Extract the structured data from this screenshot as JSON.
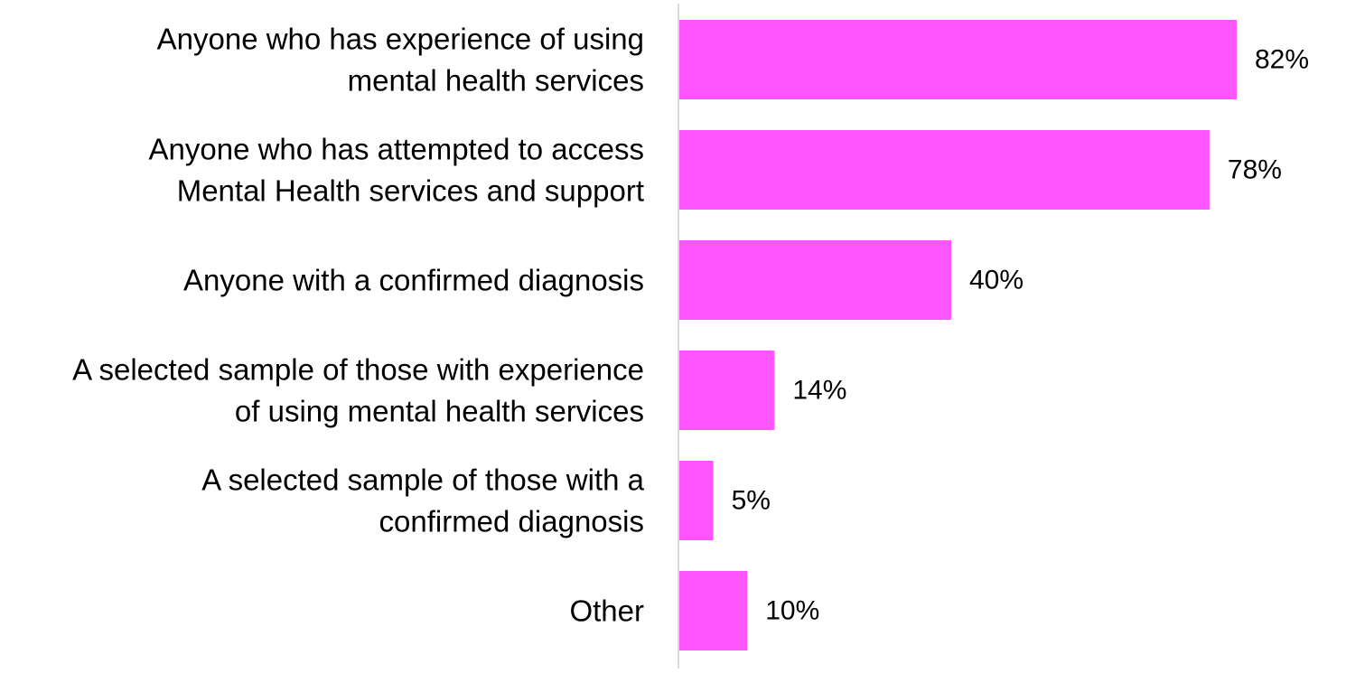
{
  "chart_data": {
    "type": "bar",
    "orientation": "horizontal",
    "categories": [
      [
        "Anyone who has experience of using",
        "mental health services"
      ],
      [
        "Anyone who has attempted to access",
        "Mental Health services and support"
      ],
      [
        "Anyone with a confirmed diagnosis"
      ],
      [
        "A selected sample of those with experience",
        "of using mental health services"
      ],
      [
        "A selected sample of those with a",
        "confirmed diagnosis"
      ],
      [
        "Other"
      ]
    ],
    "values": [
      82,
      78,
      40,
      14,
      5,
      10
    ],
    "value_labels": [
      "82%",
      "78%",
      "40%",
      "14%",
      "5%",
      "10%"
    ],
    "unit": "%",
    "xlim": [
      0,
      100
    ],
    "bar_color": "#ff55ff",
    "axis_color": "#d9d9d9",
    "grid": false,
    "legend": "none"
  }
}
